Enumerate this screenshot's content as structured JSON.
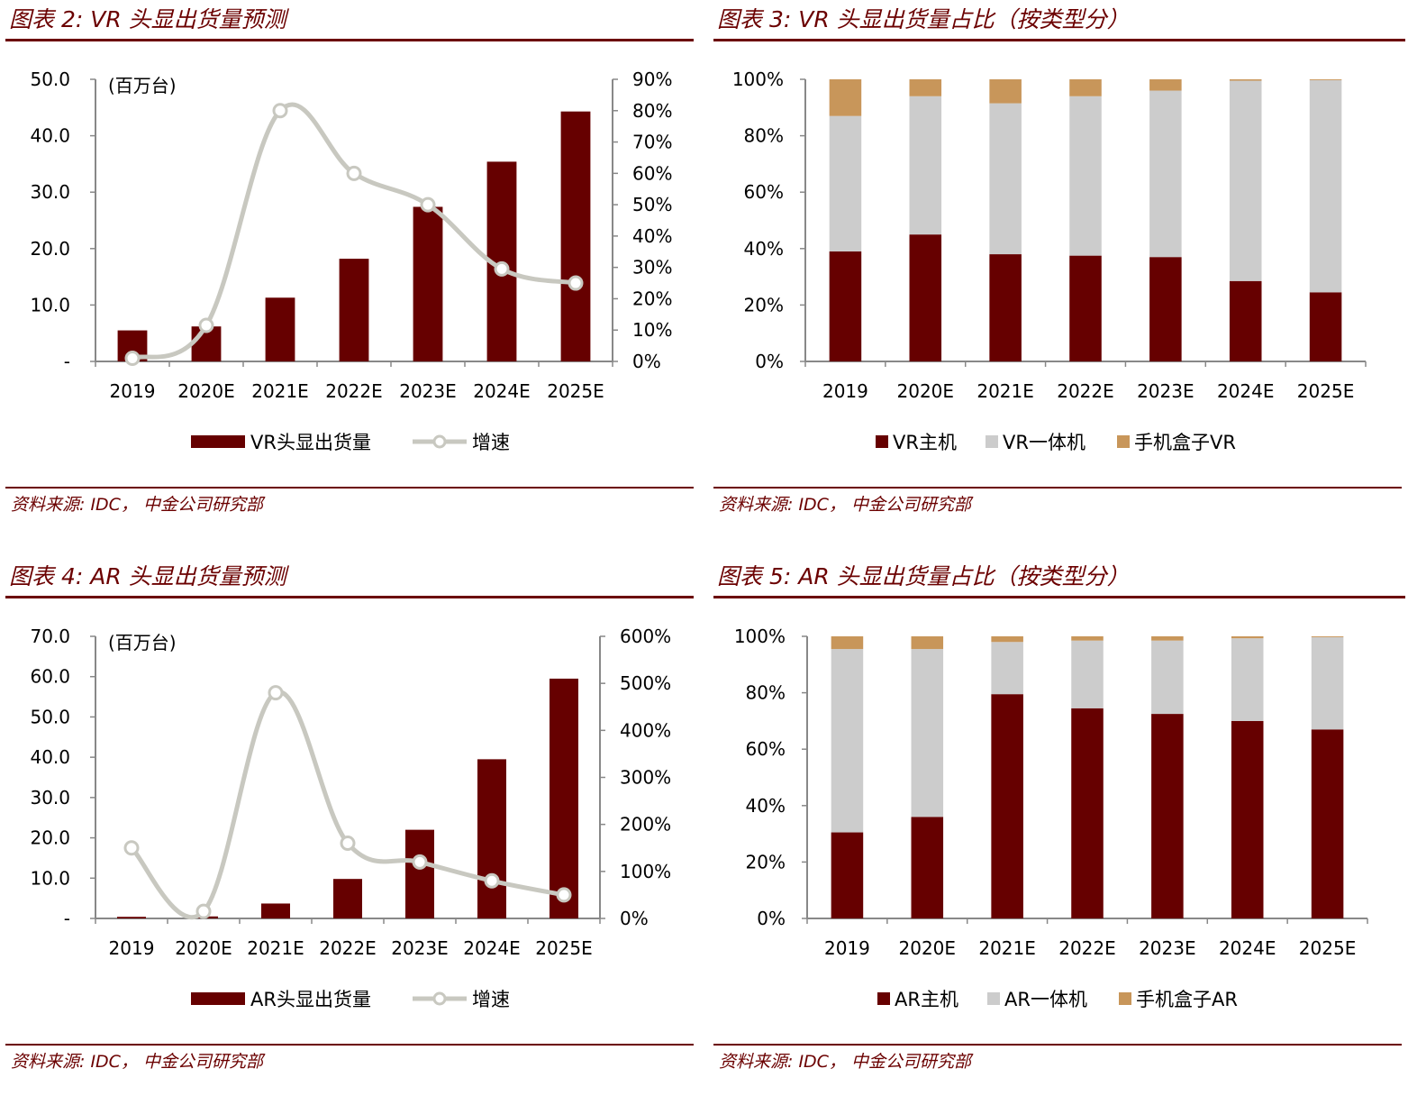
{
  "colors": {
    "host": "#660000",
    "standalone": "#cccccc",
    "phone": "#c8965a",
    "growth_line": "#c8c8c0",
    "title": "#6b0000"
  },
  "panels": [
    {
      "title": "图表 2: VR 头显出货量预测",
      "source": "资料来源: IDC， 中金公司研究部"
    },
    {
      "title": "图表 3: VR 头显出货量占比（按类型分）",
      "source": "资料来源: IDC， 中金公司研究部"
    },
    {
      "title": "图表 4: AR 头显出货量预测",
      "source": "资料来源: IDC， 中金公司研究部"
    },
    {
      "title": "图表 5: AR 头显出货量占比（按类型分）",
      "source": "资料来源: IDC， 中金公司研究部"
    }
  ],
  "chart_data": [
    {
      "type": "bar",
      "categories": [
        "2019",
        "2020E",
        "2021E",
        "2022E",
        "2023E",
        "2024E",
        "2025E"
      ],
      "unit_label": "(百万台)",
      "series": [
        {
          "name": "VR头显出货量",
          "type": "bar",
          "axis": "left",
          "values": [
            5.5,
            6.2,
            11.3,
            18.2,
            27.4,
            35.4,
            44.3
          ]
        },
        {
          "name": "增速",
          "type": "line",
          "axis": "right",
          "values": [
            0.01,
            0.115,
            0.8,
            0.6,
            0.5,
            0.295,
            0.25
          ]
        }
      ],
      "y_left": {
        "ylim": [
          0,
          50
        ],
        "ticks": [
          "-",
          "10.0",
          "20.0",
          "30.0",
          "40.0",
          "50.0"
        ]
      },
      "y_right": {
        "ylim": [
          0,
          0.9
        ],
        "ticks": [
          "0%",
          "10%",
          "20%",
          "30%",
          "40%",
          "50%",
          "60%",
          "70%",
          "80%",
          "90%"
        ]
      },
      "legend": "bottom"
    },
    {
      "type": "bar",
      "stacked": true,
      "categories": [
        "2019",
        "2020E",
        "2021E",
        "2022E",
        "2023E",
        "2024E",
        "2025E"
      ],
      "series": [
        {
          "name": "VR主机",
          "values": [
            0.39,
            0.45,
            0.38,
            0.375,
            0.37,
            0.285,
            0.245
          ]
        },
        {
          "name": "VR一体机",
          "values": [
            0.48,
            0.49,
            0.535,
            0.565,
            0.59,
            0.71,
            0.752
          ]
        },
        {
          "name": "手机盒子VR",
          "values": [
            0.13,
            0.06,
            0.085,
            0.06,
            0.04,
            0.005,
            0.003
          ]
        }
      ],
      "y": {
        "ylim": [
          0,
          1
        ],
        "ticks": [
          "0%",
          "20%",
          "40%",
          "60%",
          "80%",
          "100%"
        ]
      },
      "legend": "bottom"
    },
    {
      "type": "bar",
      "categories": [
        "2019",
        "2020E",
        "2021E",
        "2022E",
        "2023E",
        "2024E",
        "2025E"
      ],
      "unit_label": "(百万台)",
      "series": [
        {
          "name": "AR头显出货量",
          "type": "bar",
          "axis": "left",
          "values": [
            0.4,
            0.5,
            3.7,
            9.8,
            22.0,
            39.5,
            59.5
          ]
        },
        {
          "name": "增速",
          "type": "line",
          "axis": "right",
          "values": [
            1.5,
            0.15,
            4.8,
            1.6,
            1.2,
            0.8,
            0.5
          ]
        }
      ],
      "y_left": {
        "ylim": [
          0,
          70
        ],
        "ticks": [
          "-",
          "10.0",
          "20.0",
          "30.0",
          "40.0",
          "50.0",
          "60.0",
          "70.0"
        ]
      },
      "y_right": {
        "ylim": [
          0,
          6
        ],
        "ticks": [
          "0%",
          "100%",
          "200%",
          "300%",
          "400%",
          "500%",
          "600%"
        ]
      },
      "legend": "bottom"
    },
    {
      "type": "bar",
      "stacked": true,
      "categories": [
        "2019",
        "2020E",
        "2021E",
        "2022E",
        "2023E",
        "2024E",
        "2025E"
      ],
      "series": [
        {
          "name": "AR主机",
          "values": [
            0.305,
            0.36,
            0.795,
            0.745,
            0.725,
            0.7,
            0.67
          ]
        },
        {
          "name": "AR一体机",
          "values": [
            0.65,
            0.595,
            0.185,
            0.24,
            0.26,
            0.293,
            0.327
          ]
        },
        {
          "name": "手机盒子AR",
          "values": [
            0.045,
            0.045,
            0.02,
            0.015,
            0.015,
            0.007,
            0.003
          ]
        }
      ],
      "y": {
        "ylim": [
          0,
          1
        ],
        "ticks": [
          "0%",
          "20%",
          "40%",
          "60%",
          "80%",
          "100%"
        ]
      },
      "legend": "bottom"
    }
  ]
}
